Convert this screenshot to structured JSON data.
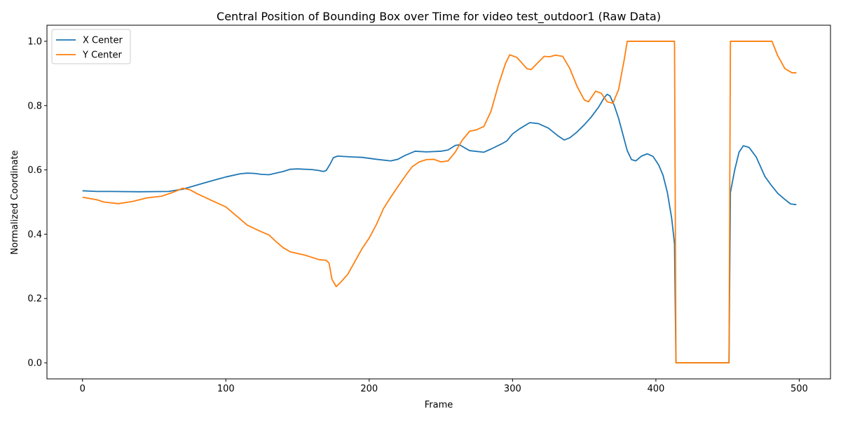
{
  "chart_data": {
    "type": "line",
    "title": "Central Position of Bounding Box over Time for video test_outdoor1 (Raw Data)",
    "xlabel": "Frame",
    "ylabel": "Normalized Coordinate",
    "xlim": [
      -24.8,
      521.8
    ],
    "ylim": [
      -0.05,
      1.05
    ],
    "xticks": [
      0,
      100,
      200,
      300,
      400,
      500
    ],
    "yticks": [
      0.0,
      0.2,
      0.4,
      0.6,
      0.8,
      1.0
    ],
    "xtick_labels": [
      "0",
      "100",
      "200",
      "300",
      "400",
      "500"
    ],
    "ytick_labels": [
      "0.0",
      "0.2",
      "0.4",
      "0.6",
      "0.8",
      "1.0"
    ],
    "grid": false,
    "legend_position": "top-left",
    "series": [
      {
        "name": "X Center",
        "color": "#1f77b4",
        "points": [
          [
            0,
            0.535
          ],
          [
            10,
            0.533
          ],
          [
            20,
            0.533
          ],
          [
            40,
            0.532
          ],
          [
            60,
            0.533
          ],
          [
            70,
            0.54
          ],
          [
            80,
            0.553
          ],
          [
            90,
            0.566
          ],
          [
            100,
            0.578
          ],
          [
            110,
            0.588
          ],
          [
            115,
            0.59
          ],
          [
            120,
            0.589
          ],
          [
            125,
            0.586
          ],
          [
            130,
            0.585
          ],
          [
            140,
            0.595
          ],
          [
            145,
            0.602
          ],
          [
            150,
            0.603
          ],
          [
            160,
            0.601
          ],
          [
            165,
            0.598
          ],
          [
            168,
            0.595
          ],
          [
            170,
            0.598
          ],
          [
            173,
            0.62
          ],
          [
            175,
            0.638
          ],
          [
            178,
            0.643
          ],
          [
            185,
            0.641
          ],
          [
            195,
            0.639
          ],
          [
            205,
            0.633
          ],
          [
            215,
            0.628
          ],
          [
            220,
            0.633
          ],
          [
            225,
            0.645
          ],
          [
            232,
            0.658
          ],
          [
            240,
            0.656
          ],
          [
            250,
            0.658
          ],
          [
            255,
            0.662
          ],
          [
            260,
            0.676
          ],
          [
            263,
            0.678
          ],
          [
            270,
            0.66
          ],
          [
            280,
            0.655
          ],
          [
            285,
            0.665
          ],
          [
            292,
            0.68
          ],
          [
            296,
            0.69
          ],
          [
            300,
            0.712
          ],
          [
            305,
            0.728
          ],
          [
            312,
            0.747
          ],
          [
            318,
            0.744
          ],
          [
            325,
            0.73
          ],
          [
            332,
            0.705
          ],
          [
            336,
            0.693
          ],
          [
            340,
            0.7
          ],
          [
            345,
            0.718
          ],
          [
            350,
            0.74
          ],
          [
            355,
            0.765
          ],
          [
            360,
            0.795
          ],
          [
            364,
            0.825
          ],
          [
            366,
            0.835
          ],
          [
            368,
            0.83
          ],
          [
            371,
            0.8
          ],
          [
            374,
            0.76
          ],
          [
            377,
            0.71
          ],
          [
            380,
            0.66
          ],
          [
            383,
            0.632
          ],
          [
            386,
            0.628
          ],
          [
            390,
            0.643
          ],
          [
            394,
            0.65
          ],
          [
            398,
            0.642
          ],
          [
            402,
            0.615
          ],
          [
            405,
            0.583
          ],
          [
            408,
            0.53
          ],
          [
            411,
            0.45
          ],
          [
            413,
            0.37
          ],
          [
            414,
            0.0
          ],
          [
            445,
            0.0
          ],
          [
            451,
            0.0
          ],
          [
            452,
            0.53
          ],
          [
            455,
            0.6
          ],
          [
            458,
            0.655
          ],
          [
            461,
            0.675
          ],
          [
            465,
            0.67
          ],
          [
            470,
            0.64
          ],
          [
            473,
            0.61
          ],
          [
            476,
            0.58
          ],
          [
            480,
            0.555
          ],
          [
            485,
            0.527
          ],
          [
            490,
            0.508
          ],
          [
            494,
            0.494
          ],
          [
            498,
            0.492
          ]
        ]
      },
      {
        "name": "Y Center",
        "color": "#ff7f0e",
        "points": [
          [
            0,
            0.515
          ],
          [
            10,
            0.507
          ],
          [
            15,
            0.5
          ],
          [
            25,
            0.495
          ],
          [
            35,
            0.502
          ],
          [
            45,
            0.513
          ],
          [
            55,
            0.518
          ],
          [
            63,
            0.53
          ],
          [
            70,
            0.543
          ],
          [
            75,
            0.538
          ],
          [
            80,
            0.526
          ],
          [
            90,
            0.505
          ],
          [
            100,
            0.485
          ],
          [
            110,
            0.447
          ],
          [
            115,
            0.428
          ],
          [
            125,
            0.407
          ],
          [
            130,
            0.398
          ],
          [
            135,
            0.377
          ],
          [
            140,
            0.358
          ],
          [
            145,
            0.345
          ],
          [
            155,
            0.335
          ],
          [
            165,
            0.321
          ],
          [
            170,
            0.319
          ],
          [
            172,
            0.31
          ],
          [
            174,
            0.26
          ],
          [
            177,
            0.237
          ],
          [
            180,
            0.25
          ],
          [
            185,
            0.275
          ],
          [
            190,
            0.315
          ],
          [
            195,
            0.355
          ],
          [
            200,
            0.388
          ],
          [
            205,
            0.43
          ],
          [
            210,
            0.48
          ],
          [
            215,
            0.515
          ],
          [
            220,
            0.548
          ],
          [
            225,
            0.58
          ],
          [
            230,
            0.61
          ],
          [
            235,
            0.625
          ],
          [
            240,
            0.632
          ],
          [
            245,
            0.633
          ],
          [
            250,
            0.625
          ],
          [
            255,
            0.628
          ],
          [
            260,
            0.655
          ],
          [
            265,
            0.693
          ],
          [
            270,
            0.72
          ],
          [
            275,
            0.725
          ],
          [
            280,
            0.735
          ],
          [
            285,
            0.783
          ],
          [
            290,
            0.862
          ],
          [
            295,
            0.93
          ],
          [
            298,
            0.958
          ],
          [
            303,
            0.95
          ],
          [
            310,
            0.915
          ],
          [
            313,
            0.912
          ],
          [
            318,
            0.935
          ],
          [
            322,
            0.953
          ],
          [
            326,
            0.952
          ],
          [
            330,
            0.957
          ],
          [
            335,
            0.953
          ],
          [
            340,
            0.915
          ],
          [
            345,
            0.86
          ],
          [
            350,
            0.818
          ],
          [
            353,
            0.812
          ],
          [
            358,
            0.845
          ],
          [
            362,
            0.838
          ],
          [
            366,
            0.812
          ],
          [
            370,
            0.807
          ],
          [
            374,
            0.85
          ],
          [
            378,
            0.945
          ],
          [
            380,
            1.0
          ],
          [
            413,
            1.0
          ],
          [
            414,
            0.0
          ],
          [
            451,
            0.0
          ],
          [
            452,
            1.0
          ],
          [
            481,
            1.0
          ],
          [
            485,
            0.955
          ],
          [
            490,
            0.915
          ],
          [
            495,
            0.902
          ],
          [
            498,
            0.902
          ]
        ]
      }
    ]
  }
}
